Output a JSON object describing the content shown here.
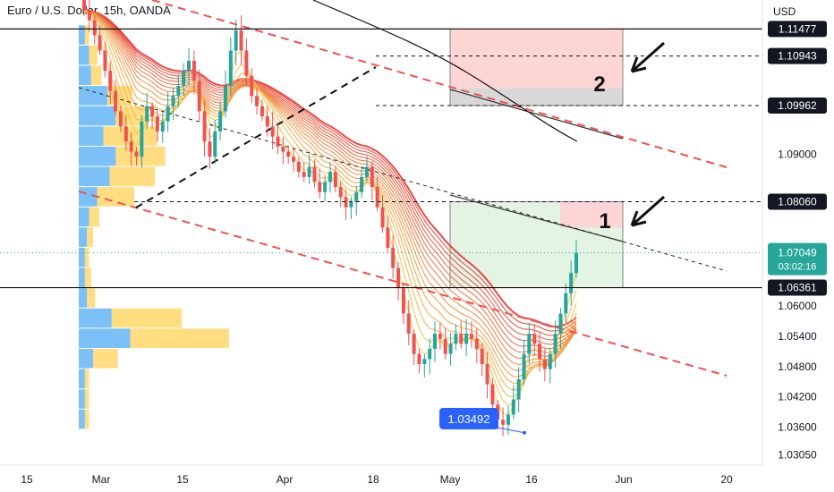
{
  "header": {
    "title": "Euro / U.S. Dollar, 15h, OANDA",
    "currency": "USD"
  },
  "colors": {
    "bull": "#26a69a",
    "bear": "#ef5350",
    "ribbon_fast": "#f7c948",
    "ribbon_slow": "#e53935",
    "zone_red": "#fdd5d5",
    "zone_green": "#e3f3e4",
    "zone_gray": "#d8d8d8",
    "vp_blue": "#64b5f6",
    "vp_yellow": "#ffd76a",
    "callout": "#2962ff",
    "price_tag": "#26a69a"
  },
  "chart_data": {
    "type": "candlestick",
    "title": "Euro / U.S. Dollar, 15h, OANDA",
    "ylabel": "USD",
    "ylim": [
      1.0285,
      1.1205
    ],
    "x_ticks": [
      "15",
      "Mar",
      "15",
      "Apr",
      "18",
      "May",
      "16",
      "Jun",
      "20"
    ],
    "y_ticks": [
      1.0305,
      1.036,
      1.042,
      1.048,
      1.054,
      1.06,
      1.09
    ],
    "key_levels": [
      {
        "id": "r_upper",
        "value": 1.11477,
        "label": "1.11477",
        "style": "solid"
      },
      {
        "id": "r_mid",
        "value": 1.10943,
        "label": "1.10943",
        "style": "dashed"
      },
      {
        "id": "r_low",
        "value": 1.09962,
        "label": "1.09962",
        "style": "dashed"
      },
      {
        "id": "r_one",
        "value": 1.0806,
        "label": "1.08060",
        "style": "dashed"
      },
      {
        "id": "support",
        "value": 1.06361,
        "label": "1.06361",
        "style": "solid"
      }
    ],
    "last_price": {
      "value": 1.07049,
      "label": "1.07049",
      "countdown": "03:02:16"
    },
    "low_callout": {
      "value": 1.03492,
      "label": "1.03492"
    },
    "zones": [
      {
        "label": "2",
        "top": 1.11477,
        "bottom": 1.09962,
        "type": "target"
      },
      {
        "label": "1",
        "top": 1.0806,
        "bottom": 1.06361,
        "type": "target"
      }
    ],
    "ribbon_bands": 16,
    "closes": [
      1.1185,
      1.1165,
      1.1135,
      1.1105,
      1.1065,
      1.1025,
      1.0985,
      1.0955,
      1.0925,
      1.0905,
      1.0895,
      1.0965,
      1.0995,
      1.0975,
      1.0945,
      1.0965,
      1.0995,
      1.1015,
      1.1035,
      1.1065,
      1.1085,
      1.1045,
      1.0985,
      1.0925,
      1.0895,
      1.0945,
      1.0985,
      1.1035,
      1.1105,
      1.1145,
      1.1105,
      1.1055,
      1.1015,
      1.0995,
      1.0975,
      1.0955,
      1.0935,
      1.0915,
      1.0905,
      1.0895,
      1.0885,
      1.0865,
      1.0855,
      1.0875,
      1.0845,
      1.0825,
      1.0845,
      1.0865,
      1.0835,
      1.0815,
      1.0795,
      1.0805,
      1.0825,
      1.0855,
      1.0875,
      1.0835,
      1.0795,
      1.0755,
      1.0715,
      1.0675,
      1.0635,
      1.0585,
      1.0545,
      1.0505,
      1.0485,
      1.0495,
      1.0515,
      1.0545,
      1.0535,
      1.0505,
      1.0525,
      1.0545,
      1.0525,
      1.0545,
      1.0535,
      1.0515,
      1.0485,
      1.0445,
      1.0405,
      1.0375,
      1.0365,
      1.0385,
      1.0415,
      1.0455,
      1.0505,
      1.0545,
      1.0525,
      1.0495,
      1.0475,
      1.0505,
      1.0545,
      1.0585,
      1.0625,
      1.0665,
      1.0705
    ],
    "volume_profile": [
      {
        "price": 1.1135,
        "blue": 0.03,
        "yellow": 0.02
      },
      {
        "price": 1.1095,
        "blue": 0.05,
        "yellow": 0.04
      },
      {
        "price": 1.1055,
        "blue": 0.06,
        "yellow": 0.05
      },
      {
        "price": 1.1015,
        "blue": 0.14,
        "yellow": 0.12
      },
      {
        "price": 1.0975,
        "blue": 0.18,
        "yellow": 0.16
      },
      {
        "price": 1.0935,
        "blue": 0.12,
        "yellow": 0.26
      },
      {
        "price": 1.0895,
        "blue": 0.18,
        "yellow": 0.24
      },
      {
        "price": 1.0855,
        "blue": 0.15,
        "yellow": 0.22
      },
      {
        "price": 1.0815,
        "blue": 0.09,
        "yellow": 0.18
      },
      {
        "price": 1.0775,
        "blue": 0.05,
        "yellow": 0.05
      },
      {
        "price": 1.0735,
        "blue": 0.04,
        "yellow": 0.03
      },
      {
        "price": 1.0695,
        "blue": 0.03,
        "yellow": 0.02
      },
      {
        "price": 1.0655,
        "blue": 0.03,
        "yellow": 0.03
      },
      {
        "price": 1.0615,
        "blue": 0.04,
        "yellow": 0.04
      },
      {
        "price": 1.0575,
        "blue": 0.16,
        "yellow": 0.34
      },
      {
        "price": 1.0535,
        "blue": 0.25,
        "yellow": 0.48
      },
      {
        "price": 1.0495,
        "blue": 0.07,
        "yellow": 0.12
      },
      {
        "price": 1.0455,
        "blue": 0.03,
        "yellow": 0.02
      },
      {
        "price": 1.0415,
        "blue": 0.03,
        "yellow": 0.02
      },
      {
        "price": 1.0375,
        "blue": 0.03,
        "yellow": 0.02
      }
    ]
  }
}
